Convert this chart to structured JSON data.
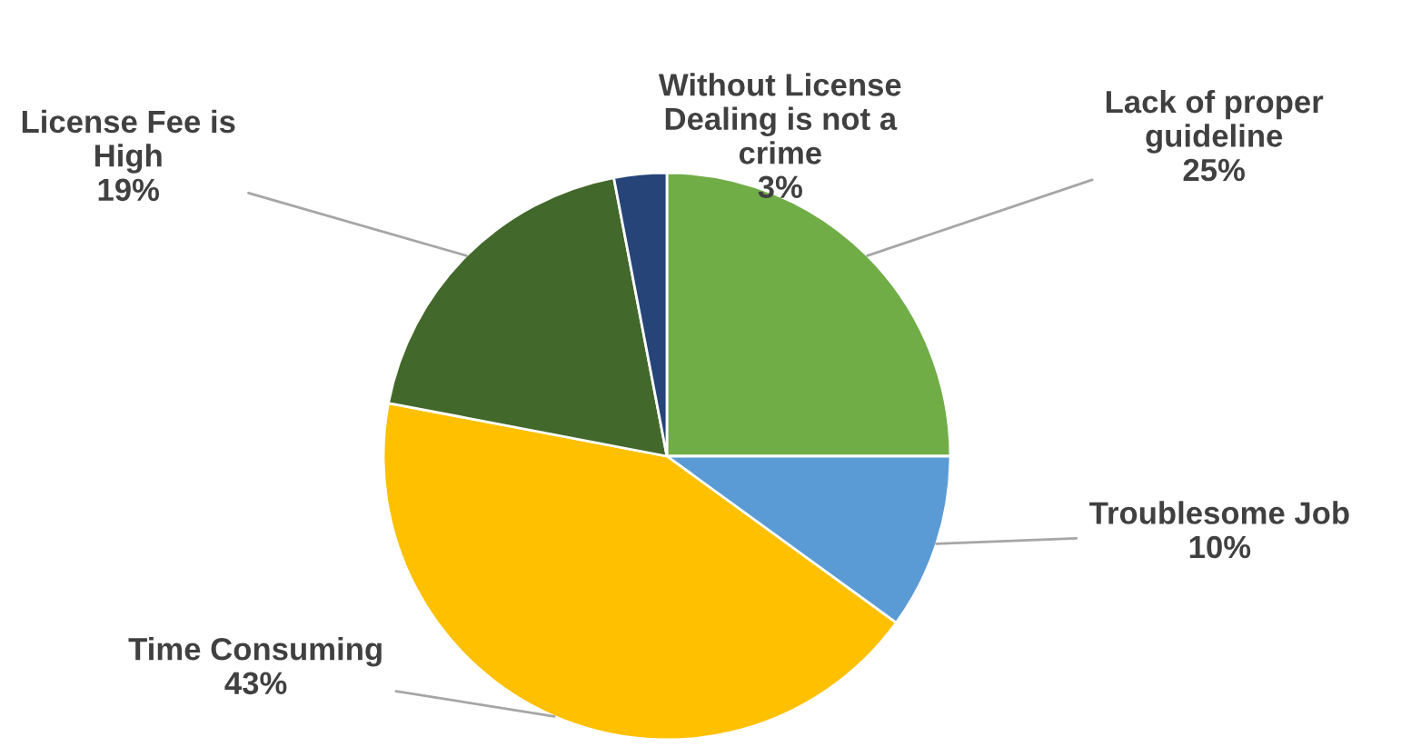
{
  "chart_data": {
    "type": "pie",
    "categories": [
      "Lack of proper\nguideline",
      "Troublesome Job",
      "Time Consuming",
      "License Fee is\nHigh",
      "Without License\nDealing is not a\ncrime"
    ],
    "values": [
      25,
      10,
      43,
      19,
      3
    ],
    "colors": [
      "#70ad47",
      "#5b9bd5",
      "#ffc000",
      "#43682b",
      "#264478"
    ],
    "value_labels": [
      "25%",
      "10%",
      "43%",
      "19%",
      "3%"
    ]
  }
}
